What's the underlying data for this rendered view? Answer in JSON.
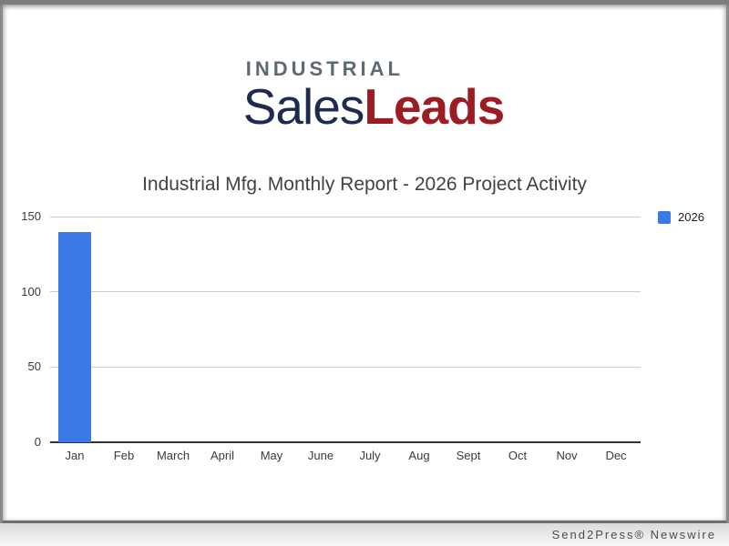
{
  "logo": {
    "top_text": "INDUSTRIAL",
    "word1": "Sales",
    "word2": "Leads",
    "top_color": "#5c6b72",
    "word1_color": "#1d2b4f",
    "word2_color": "#9b1c23"
  },
  "chart_data": {
    "type": "bar",
    "title": "Industrial Mfg. Monthly Report - 2026 Project Activity",
    "categories": [
      "Jan",
      "Feb",
      "March",
      "April",
      "May",
      "June",
      "July",
      "Aug",
      "Sept",
      "Oct",
      "Nov",
      "Dec"
    ],
    "series": [
      {
        "name": "2026",
        "color": "#3B78E8",
        "values": [
          140,
          0,
          0,
          0,
          0,
          0,
          0,
          0,
          0,
          0,
          0,
          0
        ]
      }
    ],
    "xlabel": "",
    "ylabel": "",
    "ylim": [
      0,
      150
    ],
    "y_ticks": [
      0,
      50,
      100,
      150
    ],
    "grid": true,
    "legend_position": "top-right",
    "gridline_color": "#cccccc",
    "axis_line_color": "#333333"
  },
  "footer": {
    "credit": "Send2Press® Newswire"
  }
}
